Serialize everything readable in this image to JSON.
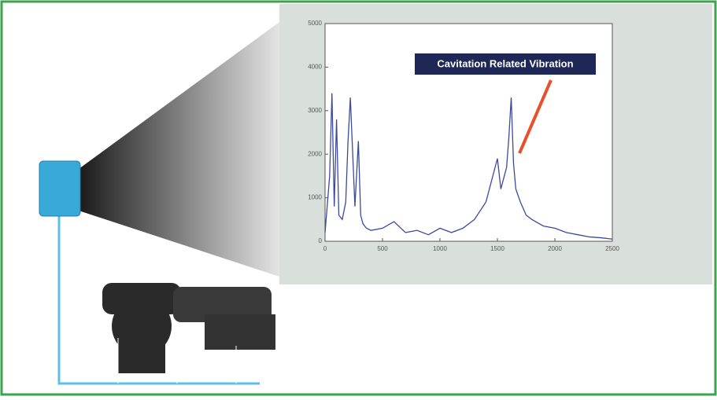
{
  "chart_data": {
    "type": "line",
    "annotation": "Cavitation Related Vibration",
    "x": [
      0,
      40,
      60,
      80,
      100,
      120,
      150,
      180,
      200,
      220,
      260,
      290,
      310,
      330,
      360,
      400,
      500,
      600,
      700,
      800,
      900,
      1000,
      1100,
      1200,
      1300,
      1400,
      1450,
      1500,
      1530,
      1560,
      1580,
      1600,
      1620,
      1640,
      1660,
      1700,
      1750,
      1800,
      1900,
      2000,
      2100,
      2200,
      2300,
      2400,
      2500
    ],
    "series": [
      {
        "color": "#3b4a9c",
        "values": [
          200,
          1500,
          3400,
          800,
          2800,
          600,
          500,
          900,
          2300,
          3300,
          800,
          2300,
          600,
          400,
          300,
          250,
          300,
          450,
          200,
          250,
          150,
          300,
          200,
          300,
          500,
          900,
          1400,
          1900,
          1200,
          1500,
          1700,
          2400,
          3300,
          1800,
          1200,
          900,
          600,
          500,
          350,
          300,
          200,
          150,
          100,
          80,
          50
        ]
      }
    ],
    "xlim": [
      0,
      2500
    ],
    "xticks": [
      0,
      500,
      1000,
      1500,
      2000,
      2500
    ],
    "ylim": [
      0,
      5000
    ],
    "yticks": [
      0,
      1000,
      2000,
      3000,
      4000,
      5000
    ]
  }
}
